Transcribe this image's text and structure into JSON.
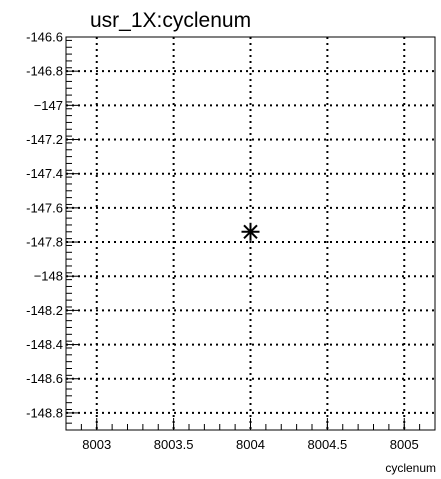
{
  "chart_data": {
    "type": "scatter",
    "title": "usr_1X:cyclenum",
    "xlabel": "cyclenum",
    "ylabel": "",
    "xlim": [
      8002.8,
      8005.2
    ],
    "ylim": [
      -148.9,
      -146.6
    ],
    "x_ticks": [
      8003,
      8003.5,
      8004,
      8004.5,
      8005
    ],
    "x_tick_labels": [
      "8003",
      "8003.5",
      "8004",
      "8004.5",
      "8005"
    ],
    "y_ticks": [
      -146.6,
      -146.8,
      -147,
      -147.2,
      -147.4,
      -147.6,
      -147.8,
      -148,
      -148.2,
      -148.4,
      -148.6,
      -148.8
    ],
    "y_tick_labels": [
      "-146.6",
      "-146.8",
      "−147",
      "-147.2",
      "-147.4",
      "-147.6",
      "-147.8",
      "−148",
      "-148.2",
      "-148.4",
      "-148.6",
      "-148.8"
    ],
    "grid": true,
    "marker": "asterisk",
    "points": [
      {
        "x": 8004,
        "y": -147.74
      }
    ]
  }
}
